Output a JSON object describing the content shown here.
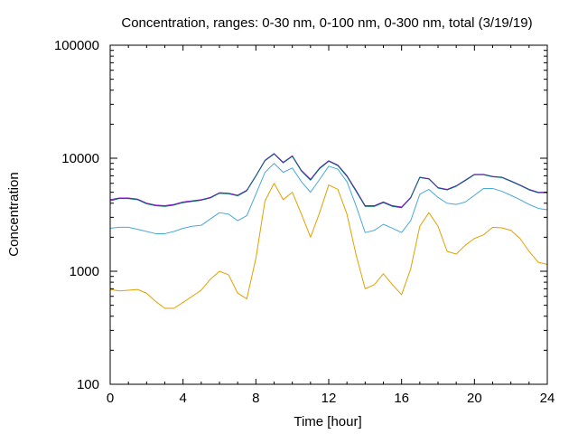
{
  "chart_data": {
    "type": "line",
    "title": "Concentration, ranges: 0-30 nm, 0-100 nm, 0-300 nm, total (3/19/19)",
    "xlabel": "Time [hour]",
    "ylabel": "Concentration",
    "xlim": [
      0,
      24
    ],
    "ylim": [
      100,
      100000
    ],
    "yscale": "log",
    "grid": false,
    "legend": "none",
    "x_ticks": [
      0,
      4,
      8,
      12,
      16,
      20,
      24
    ],
    "x_tick_labels": [
      "0",
      "4",
      "8",
      "12",
      "16",
      "20",
      "24"
    ],
    "y_ticks": [
      100,
      1000,
      10000,
      100000
    ],
    "y_tick_labels": [
      "100",
      "1000",
      "10000",
      "100000"
    ],
    "x": [
      0,
      0.5,
      1,
      1.5,
      2,
      2.5,
      3,
      3.5,
      4,
      4.5,
      5,
      5.5,
      6,
      6.5,
      7,
      7.5,
      8,
      8.5,
      9,
      9.5,
      10,
      10.5,
      11,
      11.5,
      12,
      12.5,
      13,
      13.5,
      14,
      14.5,
      15,
      15.5,
      16,
      16.5,
      17,
      17.5,
      18,
      18.5,
      19,
      19.5,
      20,
      20.5,
      21,
      21.5,
      22,
      22.5,
      23,
      23.5,
      24
    ],
    "series": [
      {
        "color": "#e1a100",
        "values": [
          690,
          670,
          680,
          690,
          640,
          540,
          470,
          470,
          530,
          600,
          680,
          850,
          1000,
          930,
          640,
          570,
          1300,
          4200,
          6000,
          4300,
          5000,
          3200,
          2000,
          3300,
          5800,
          5300,
          3200,
          1400,
          700,
          760,
          950,
          760,
          620,
          1050,
          2500,
          3300,
          2500,
          1500,
          1420,
          1700,
          1950,
          2100,
          2450,
          2420,
          2300,
          1950,
          1500,
          1200,
          1150
        ]
      },
      {
        "color": "#4aa8d8",
        "values": [
          2400,
          2450,
          2450,
          2350,
          2250,
          2150,
          2150,
          2250,
          2400,
          2500,
          2550,
          2900,
          3300,
          3200,
          2800,
          3100,
          4800,
          7500,
          9000,
          7500,
          8200,
          6200,
          5000,
          6500,
          8500,
          8000,
          6200,
          3800,
          2200,
          2300,
          2600,
          2400,
          2200,
          2800,
          4800,
          5300,
          4500,
          4000,
          3900,
          4100,
          4700,
          5400,
          5400,
          5100,
          4700,
          4300,
          3900,
          3600,
          3500
        ]
      },
      {
        "color": "#9400d3",
        "values": [
          4300,
          4450,
          4450,
          4350,
          4000,
          3850,
          3800,
          3900,
          4100,
          4200,
          4300,
          4500,
          4950,
          4900,
          4700,
          5200,
          7000,
          9600,
          11000,
          9200,
          10500,
          7800,
          6500,
          8200,
          9500,
          8700,
          7000,
          5200,
          3800,
          3800,
          4100,
          3800,
          3700,
          4500,
          6800,
          6600,
          5500,
          5300,
          5700,
          6400,
          7200,
          7200,
          6900,
          6800,
          6300,
          5800,
          5300,
          5000,
          5000
        ]
      },
      {
        "color": "#006b70",
        "values": [
          4200,
          4400,
          4400,
          4300,
          3950,
          3800,
          3750,
          3850,
          4050,
          4150,
          4250,
          4450,
          4900,
          4850,
          4650,
          5150,
          6950,
          9500,
          10900,
          9100,
          10400,
          7700,
          6400,
          8100,
          9400,
          8600,
          6900,
          5100,
          3750,
          3750,
          4050,
          3750,
          3650,
          4450,
          6750,
          6550,
          5450,
          5250,
          5650,
          6350,
          7150,
          7150,
          6850,
          6750,
          6250,
          5750,
          5250,
          4950,
          4950
        ]
      }
    ]
  }
}
